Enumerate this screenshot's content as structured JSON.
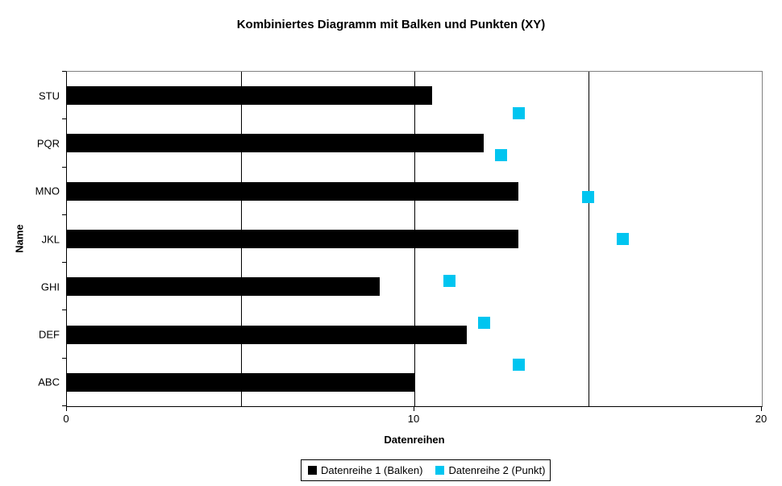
{
  "chart_data": {
    "type": "bar",
    "subtype": "horizontal-bars-with-xy-scatter-points",
    "title": "Kombiniertes Diagramm mit Balken und Punkten (XY)",
    "xlabel": "Datenreihen",
    "ylabel": "Name",
    "categories_bottom_to_top": [
      "ABC",
      "DEF",
      "GHI",
      "JKL",
      "MNO",
      "PQR",
      "STU"
    ],
    "series": [
      {
        "name": "Datenreihe 1 (Balken)",
        "type": "bar",
        "color": "#000000",
        "values": [
          10,
          11.5,
          9,
          13,
          13,
          12,
          10.5
        ]
      },
      {
        "name": "Datenreihe 2 (Punkt)",
        "type": "scatter",
        "color": "#00C5F0",
        "values": [
          13,
          12,
          11,
          16,
          15,
          12.5,
          13
        ],
        "y_positions_on_linear_axis_0_to_8": [
          1,
          2,
          3,
          4,
          5,
          6,
          7
        ]
      }
    ],
    "xlim": [
      0,
      20
    ],
    "xticks": [
      0,
      10,
      20
    ],
    "xtick_labels": [
      "0",
      "10",
      "20"
    ],
    "x_gridlines": [
      5,
      10,
      15
    ],
    "grid": "vertical-only",
    "legend_position": "bottom-center",
    "colors": {
      "bar_fill": "#000000",
      "point_fill": "#00C5F0",
      "axis_line": "#000000",
      "gridline": "#000000",
      "plot_border_top_right": "#808080",
      "background": "#ffffff"
    }
  }
}
